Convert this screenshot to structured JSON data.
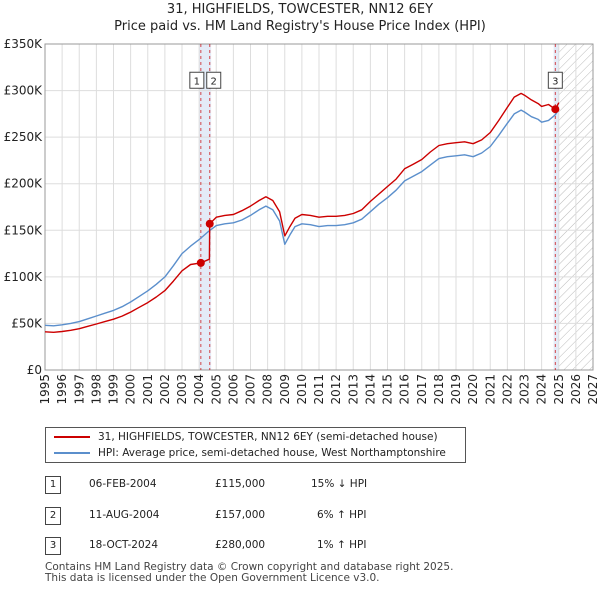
{
  "header": {
    "title": "31, HIGHFIELDS, TOWCESTER, NN12 6EY",
    "subtitle": "Price paid vs. HM Land Registry's House Price Index (HPI)"
  },
  "legend": {
    "items": [
      {
        "label": "31, HIGHFIELDS, TOWCESTER, NN12 6EY (semi-detached house)",
        "color": "#cc0000"
      },
      {
        "label": "HPI: Average price, semi-detached house, West Northamptonshire",
        "color": "#5b8fcc"
      }
    ]
  },
  "transactions": [
    {
      "num": "1",
      "date": "06-FEB-2004",
      "price": "£115,000",
      "hpi": "15% ↓ HPI"
    },
    {
      "num": "2",
      "date": "11-AUG-2004",
      "price": "£157,000",
      "hpi": "6% ↑ HPI"
    },
    {
      "num": "3",
      "date": "18-OCT-2024",
      "price": "£280,000",
      "hpi": "1% ↑ HPI"
    }
  ],
  "footer": {
    "line1": "Contains HM Land Registry data © Crown copyright and database right 2025.",
    "line2": "This data is licensed under the Open Government Licence v3.0."
  },
  "chart_data": {
    "type": "line",
    "title": "31, HIGHFIELDS, TOWCESTER, NN12 6EY",
    "subtitle": "Price paid vs. HM Land Registry's House Price Index (HPI)",
    "xlim": [
      1995,
      2027
    ],
    "ylim": [
      0,
      350000
    ],
    "x_ticks": [
      "1995",
      "1996",
      "1997",
      "1998",
      "1999",
      "2000",
      "2001",
      "2002",
      "2003",
      "2004",
      "2005",
      "2006",
      "2007",
      "2008",
      "2009",
      "2010",
      "2011",
      "2012",
      "2013",
      "2014",
      "2015",
      "2016",
      "2017",
      "2018",
      "2019",
      "2020",
      "2021",
      "2022",
      "2023",
      "2024",
      "2025",
      "2026",
      "2027"
    ],
    "y_ticks": [
      {
        "value": 0,
        "label": "£0"
      },
      {
        "value": 50000,
        "label": "£50K"
      },
      {
        "value": 100000,
        "label": "£100K"
      },
      {
        "value": 150000,
        "label": "£150K"
      },
      {
        "value": 200000,
        "label": "£200K"
      },
      {
        "value": 250000,
        "label": "£250K"
      },
      {
        "value": 300000,
        "label": "£300K"
      },
      {
        "value": 350000,
        "label": "£350K"
      }
    ],
    "forecast_start": 2025.0,
    "colors": {
      "property": "#cc0000",
      "hpi": "#5b8fcc",
      "marker_line": "#cc0000",
      "shade": "#dde6f5"
    },
    "shade_bands": [
      [
        2004.0,
        2004.7
      ],
      [
        2024.7,
        2025.0
      ]
    ],
    "series": [
      {
        "name": "HPI: Average price, semi-detached house, West Northamptonshire",
        "color": "#5b8fcc",
        "x": [
          1995.0,
          1995.5,
          1996.0,
          1996.5,
          1997.0,
          1997.5,
          1998.0,
          1998.5,
          1999.0,
          1999.5,
          2000.0,
          2000.5,
          2001.0,
          2001.5,
          2002.0,
          2002.5,
          2003.0,
          2003.5,
          2004.0,
          2004.5,
          2005.0,
          2005.5,
          2006.0,
          2006.5,
          2007.0,
          2007.5,
          2007.9,
          2008.3,
          2008.7,
          2009.0,
          2009.3,
          2009.6,
          2010.0,
          2010.5,
          2011.0,
          2011.5,
          2012.0,
          2012.5,
          2013.0,
          2013.5,
          2014.0,
          2014.5,
          2015.0,
          2015.5,
          2016.0,
          2016.5,
          2017.0,
          2017.5,
          2018.0,
          2018.5,
          2019.0,
          2019.5,
          2020.0,
          2020.5,
          2021.0,
          2021.5,
          2022.0,
          2022.4,
          2022.8,
          2023.0,
          2023.4,
          2023.8,
          2024.0,
          2024.4,
          2024.8,
          2025.0
        ],
        "values": [
          48000,
          47500,
          48500,
          50000,
          52000,
          55000,
          58000,
          61000,
          64000,
          68000,
          73000,
          79000,
          85000,
          92000,
          100000,
          112000,
          125000,
          133000,
          140000,
          148000,
          155000,
          157000,
          158000,
          161000,
          166000,
          172000,
          176000,
          172000,
          160000,
          135000,
          145000,
          154000,
          157000,
          156000,
          154000,
          155000,
          155000,
          156000,
          158000,
          162000,
          170000,
          178000,
          185000,
          193000,
          203000,
          208000,
          213000,
          220000,
          227000,
          229000,
          230000,
          231000,
          229000,
          233000,
          240000,
          252000,
          265000,
          275000,
          279000,
          277000,
          272000,
          269000,
          266000,
          268000,
          274000,
          280000
        ]
      },
      {
        "name": "31, HIGHFIELDS, TOWCESTER, NN12 6EY (semi-detached house)",
        "color": "#cc0000",
        "x": [
          1995.0,
          1995.5,
          1996.0,
          1996.5,
          1997.0,
          1997.5,
          1998.0,
          1998.5,
          1999.0,
          1999.5,
          2000.0,
          2000.5,
          2001.0,
          2001.5,
          2002.0,
          2002.5,
          2003.0,
          2003.5,
          2004.1,
          2004.6,
          2004.62,
          2005.0,
          2005.5,
          2006.0,
          2006.5,
          2007.0,
          2007.5,
          2007.9,
          2008.3,
          2008.7,
          2009.0,
          2009.3,
          2009.6,
          2010.0,
          2010.5,
          2011.0,
          2011.5,
          2012.0,
          2012.5,
          2013.0,
          2013.5,
          2014.0,
          2014.5,
          2015.0,
          2015.5,
          2016.0,
          2016.5,
          2017.0,
          2017.5,
          2018.0,
          2018.5,
          2019.0,
          2019.5,
          2020.0,
          2020.5,
          2021.0,
          2021.5,
          2022.0,
          2022.4,
          2022.8,
          2023.0,
          2023.4,
          2023.8,
          2024.0,
          2024.4,
          2024.8,
          2025.0
        ],
        "values": [
          41000,
          40500,
          41300,
          42600,
          44300,
          46900,
          49400,
          52000,
          54500,
          57900,
          62200,
          67300,
          72400,
          78400,
          85200,
          95400,
          106500,
          113300,
          115000,
          119000,
          157000,
          164000,
          166000,
          167000,
          171000,
          176000,
          182000,
          186000,
          182000,
          170000,
          144000,
          154000,
          163000,
          167000,
          166000,
          164000,
          165000,
          165000,
          166000,
          168000,
          172000,
          181000,
          189000,
          197000,
          205000,
          216000,
          221000,
          226000,
          234000,
          241000,
          243000,
          244000,
          245000,
          243000,
          247000,
          255000,
          268000,
          282000,
          293000,
          297000,
          295000,
          290000,
          286000,
          283000,
          285000,
          280000,
          287000
        ]
      }
    ],
    "markers": [
      {
        "label": "1",
        "x": 2004.1,
        "value": 115000
      },
      {
        "label": "2",
        "x": 2004.62,
        "value": 157000
      },
      {
        "label": "3",
        "x": 2024.8,
        "value": 280000
      }
    ]
  }
}
